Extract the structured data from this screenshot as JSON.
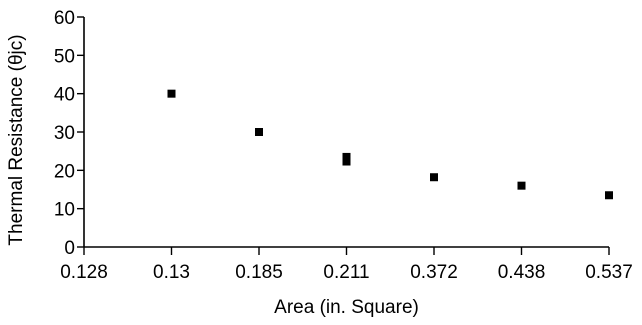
{
  "chart_data": {
    "type": "scatter",
    "xlabel": "Area (in. Square)",
    "ylabel": "Thermal Resistance (θjc)",
    "x_axis_kind": "categorical",
    "categories": [
      "0.128",
      "0.13",
      "0.185",
      "0.211",
      "0.372",
      "0.438",
      "0.537"
    ],
    "ylim": [
      0,
      60
    ],
    "y_ticks": [
      0,
      10,
      20,
      30,
      40,
      50,
      60
    ],
    "grid": false,
    "legend": "none",
    "marker_shape": "square",
    "marker_color": "#000000",
    "axis_color": "#000000",
    "series": [
      {
        "points": [
          {
            "x": "0.13",
            "y": 40
          },
          {
            "x": "0.185",
            "y": 30
          },
          {
            "x": "0.211",
            "y": 23.5
          },
          {
            "x": "0.211",
            "y": 22.3
          },
          {
            "x": "0.372",
            "y": 18.2
          },
          {
            "x": "0.438",
            "y": 16
          },
          {
            "x": "0.537",
            "y": 13.5
          }
        ]
      }
    ]
  }
}
